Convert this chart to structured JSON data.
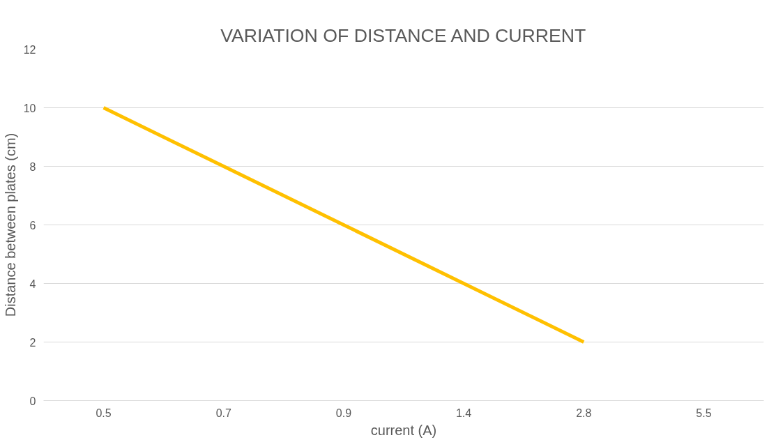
{
  "chart_data": {
    "type": "line",
    "title": "VARIATION OF DISTANCE AND CURRENT",
    "xlabel": "current (A)",
    "ylabel": "Distance between plates (cm)",
    "categories": [
      "0.5",
      "0.7",
      "0.9",
      "1.4",
      "2.8",
      "5.5"
    ],
    "series": [
      {
        "color": "#ffc000",
        "values": [
          10,
          8,
          6,
          4,
          2,
          null
        ]
      }
    ],
    "ylim": [
      0,
      12
    ],
    "yticks": [
      0,
      2,
      4,
      6,
      8,
      10,
      12
    ],
    "grid": "y",
    "marker": "none",
    "line_style": "solid"
  }
}
